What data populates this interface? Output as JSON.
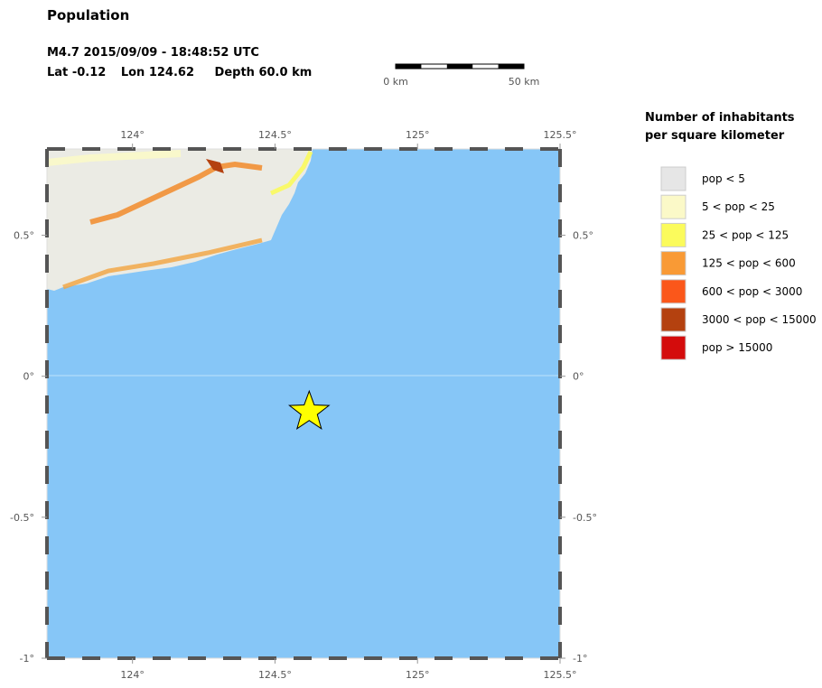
{
  "header": {
    "title": "Population",
    "event_line": "M4.7  2015/09/09 - 18:48:52 UTC",
    "location": {
      "lat_label": "Lat",
      "lat": -0.12,
      "lon_label": "Lon",
      "lon": 124.62,
      "depth_label": "Depth",
      "depth": "60.0 km"
    }
  },
  "scale_bar": {
    "start_label": "0 km",
    "end_label": "50 km"
  },
  "map": {
    "lon_range": [
      123.7,
      125.5
    ],
    "lat_range": [
      -1,
      0.806
    ],
    "lon_ticks": [
      {
        "value": 124,
        "label": "124°"
      },
      {
        "value": 124.5,
        "label": "124.5°"
      },
      {
        "value": 125,
        "label": "125°"
      },
      {
        "value": 125.5,
        "label": "125.5°"
      }
    ],
    "lat_ticks": [
      {
        "value": 0.5,
        "label": "0.5°"
      },
      {
        "value": 0,
        "label": "0°"
      },
      {
        "value": -0.5,
        "label": "-0.5°"
      },
      {
        "value": -1,
        "label": "-1°"
      }
    ]
  },
  "legend": {
    "title_lines": [
      "Number of inhabitants",
      "per square kilometer"
    ],
    "items": [
      {
        "label": "pop < 5",
        "color": "#e6e6e6"
      },
      {
        "label": "5 < pop < 25",
        "color": "#fbf9c8"
      },
      {
        "label": "25 < pop < 125",
        "color": "#fbfb5c"
      },
      {
        "label": "125 < pop < 600",
        "color": "#f99a35"
      },
      {
        "label": "600 < pop < 3000",
        "color": "#fb571a"
      },
      {
        "label": "3000 < pop < 15000",
        "color": "#b4410f"
      },
      {
        "label": "pop > 15000",
        "color": "#d40c0c"
      }
    ]
  }
}
